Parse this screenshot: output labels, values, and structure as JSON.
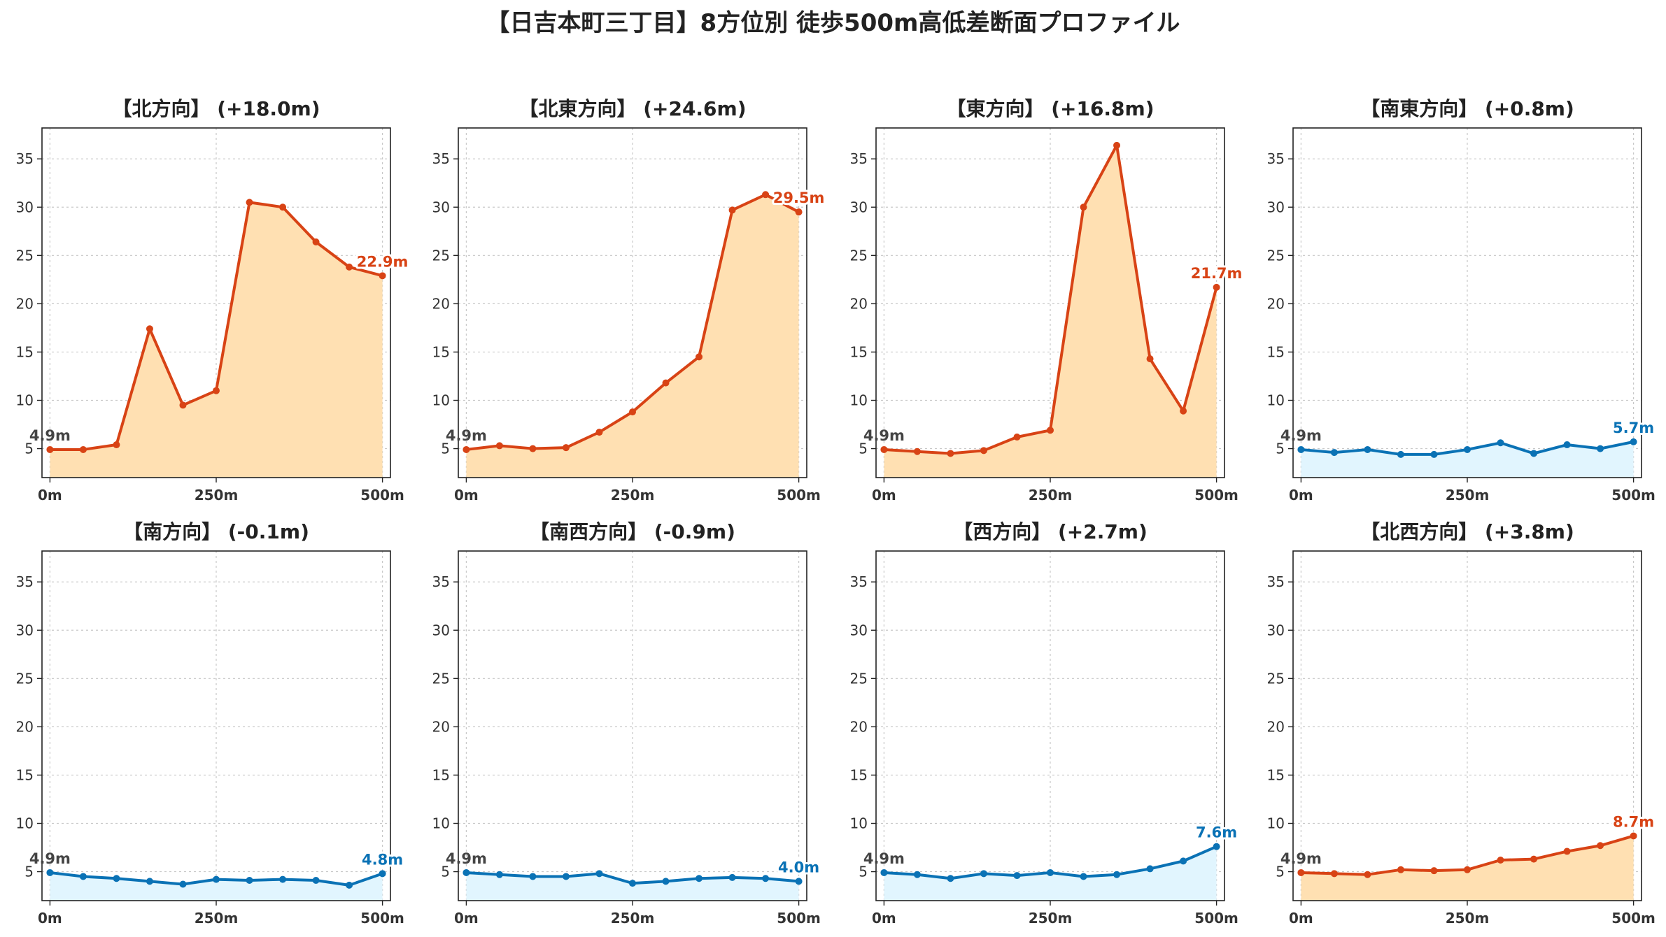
{
  "figure": {
    "title": "【日吉本町三丁目】8方位別 徒歩500m高低差断面プロファイル"
  },
  "colors": {
    "up_line": "#d84315",
    "up_fill": "#ffe0b2",
    "down_line": "#0a72b5",
    "down_fill": "#e1f5fe",
    "grid": "#c8c8c8",
    "start_label": "#444444"
  },
  "chart_data": [
    {
      "type": "area",
      "title": "【北方向】 (+18.0m)",
      "trend": "up",
      "x": [
        0,
        50,
        100,
        150,
        200,
        250,
        300,
        350,
        400,
        450,
        500
      ],
      "values": [
        4.9,
        4.9,
        5.4,
        17.4,
        9.5,
        11.0,
        30.5,
        30.0,
        26.4,
        23.8,
        22.9
      ],
      "start_label": "4.9m",
      "end_label": "22.9m",
      "xticks": [
        "0m",
        "250m",
        "500m"
      ],
      "yticks": [
        5,
        10,
        15,
        20,
        25,
        30,
        35
      ],
      "xlim": [
        -12,
        512
      ],
      "ylim": [
        2,
        38.2
      ],
      "grid": true
    },
    {
      "type": "area",
      "title": "【北東方向】 (+24.6m)",
      "trend": "up",
      "x": [
        0,
        50,
        100,
        150,
        200,
        250,
        300,
        350,
        400,
        450,
        500
      ],
      "values": [
        4.9,
        5.3,
        5.0,
        5.1,
        6.7,
        8.8,
        11.8,
        14.5,
        29.7,
        31.3,
        29.5
      ],
      "start_label": "4.9m",
      "end_label": "29.5m",
      "xticks": [
        "0m",
        "250m",
        "500m"
      ],
      "yticks": [
        5,
        10,
        15,
        20,
        25,
        30,
        35
      ],
      "xlim": [
        -12,
        512
      ],
      "ylim": [
        2,
        38.2
      ],
      "grid": true
    },
    {
      "type": "area",
      "title": "【東方向】 (+16.8m)",
      "trend": "up",
      "x": [
        0,
        50,
        100,
        150,
        200,
        250,
        300,
        350,
        400,
        450,
        500
      ],
      "values": [
        4.9,
        4.7,
        4.5,
        4.8,
        6.2,
        6.9,
        30.0,
        36.4,
        14.3,
        8.9,
        21.7
      ],
      "start_label": "4.9m",
      "end_label": "21.7m",
      "xticks": [
        "0m",
        "250m",
        "500m"
      ],
      "yticks": [
        5,
        10,
        15,
        20,
        25,
        30,
        35
      ],
      "xlim": [
        -12,
        512
      ],
      "ylim": [
        2,
        38.2
      ],
      "grid": true
    },
    {
      "type": "area",
      "title": "【南東方向】 (+0.8m)",
      "trend": "down",
      "x": [
        0,
        50,
        100,
        150,
        200,
        250,
        300,
        350,
        400,
        450,
        500
      ],
      "values": [
        4.9,
        4.6,
        4.9,
        4.4,
        4.4,
        4.9,
        5.6,
        4.5,
        5.4,
        5.0,
        5.7
      ],
      "start_label": "4.9m",
      "end_label": "5.7m",
      "xticks": [
        "0m",
        "250m",
        "500m"
      ],
      "yticks": [
        5,
        10,
        15,
        20,
        25,
        30,
        35
      ],
      "xlim": [
        -12,
        512
      ],
      "ylim": [
        2,
        38.2
      ],
      "grid": true
    },
    {
      "type": "area",
      "title": "【南方向】 (-0.1m)",
      "trend": "down",
      "x": [
        0,
        50,
        100,
        150,
        200,
        250,
        300,
        350,
        400,
        450,
        500
      ],
      "values": [
        4.9,
        4.5,
        4.3,
        4.0,
        3.7,
        4.2,
        4.1,
        4.2,
        4.1,
        3.6,
        4.8
      ],
      "start_label": "4.9m",
      "end_label": "4.8m",
      "xticks": [
        "0m",
        "250m",
        "500m"
      ],
      "yticks": [
        5,
        10,
        15,
        20,
        25,
        30,
        35
      ],
      "xlim": [
        -12,
        512
      ],
      "ylim": [
        2,
        38.2
      ],
      "grid": true
    },
    {
      "type": "area",
      "title": "【南西方向】 (-0.9m)",
      "trend": "down",
      "x": [
        0,
        50,
        100,
        150,
        200,
        250,
        300,
        350,
        400,
        450,
        500
      ],
      "values": [
        4.9,
        4.7,
        4.5,
        4.5,
        4.8,
        3.8,
        4.0,
        4.3,
        4.4,
        4.3,
        4.0
      ],
      "start_label": "4.9m",
      "end_label": "4.0m",
      "xticks": [
        "0m",
        "250m",
        "500m"
      ],
      "yticks": [
        5,
        10,
        15,
        20,
        25,
        30,
        35
      ],
      "xlim": [
        -12,
        512
      ],
      "ylim": [
        2,
        38.2
      ],
      "grid": true
    },
    {
      "type": "area",
      "title": "【西方向】 (+2.7m)",
      "trend": "down",
      "x": [
        0,
        50,
        100,
        150,
        200,
        250,
        300,
        350,
        400,
        450,
        500
      ],
      "values": [
        4.9,
        4.7,
        4.3,
        4.8,
        4.6,
        4.9,
        4.5,
        4.7,
        5.3,
        6.1,
        7.6
      ],
      "start_label": "4.9m",
      "end_label": "7.6m",
      "xticks": [
        "0m",
        "250m",
        "500m"
      ],
      "yticks": [
        5,
        10,
        15,
        20,
        25,
        30,
        35
      ],
      "xlim": [
        -12,
        512
      ],
      "ylim": [
        2,
        38.2
      ],
      "grid": true
    },
    {
      "type": "area",
      "title": "【北西方向】 (+3.8m)",
      "trend": "up",
      "x": [
        0,
        50,
        100,
        150,
        200,
        250,
        300,
        350,
        400,
        450,
        500
      ],
      "values": [
        4.9,
        4.8,
        4.7,
        5.2,
        5.1,
        5.2,
        6.2,
        6.3,
        7.1,
        7.7,
        8.7
      ],
      "start_label": "4.9m",
      "end_label": "8.7m",
      "xticks": [
        "0m",
        "250m",
        "500m"
      ],
      "yticks": [
        5,
        10,
        15,
        20,
        25,
        30,
        35
      ],
      "xlim": [
        -12,
        512
      ],
      "ylim": [
        2,
        38.2
      ],
      "grid": true
    }
  ]
}
